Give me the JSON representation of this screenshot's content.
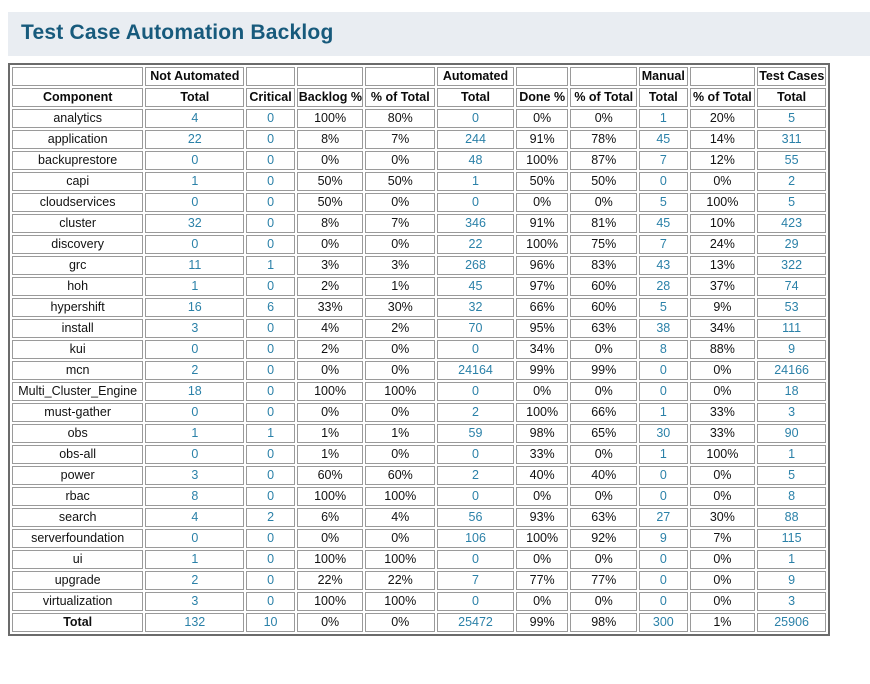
{
  "header": {
    "title": "Test Case Automation Backlog"
  },
  "colors": {
    "title_color": "#175a7c",
    "title_bar_bg": "#e9edf2",
    "accent_number": "#2b81a8",
    "cell_border": "#9a9a9a",
    "table_border": "#6b6b6b"
  },
  "table": {
    "group_headers": [
      "",
      "Not Automated",
      "",
      "",
      "",
      "Automated",
      "",
      "",
      "Manual",
      "",
      "Test Cases"
    ],
    "column_headers": [
      "Component",
      "Total",
      "Critical",
      "Backlog %",
      "% of Total",
      "Total",
      "Done %",
      "% of Total",
      "Total",
      "% of Total",
      "Total"
    ],
    "blue_value_indices": [
      0,
      1,
      4,
      7,
      9
    ],
    "rows": [
      {
        "component": "analytics",
        "values": [
          "4",
          "0",
          "100%",
          "80%",
          "0",
          "0%",
          "0%",
          "1",
          "20%",
          "5"
        ]
      },
      {
        "component": "application",
        "values": [
          "22",
          "0",
          "8%",
          "7%",
          "244",
          "91%",
          "78%",
          "45",
          "14%",
          "311"
        ]
      },
      {
        "component": "backuprestore",
        "values": [
          "0",
          "0",
          "0%",
          "0%",
          "48",
          "100%",
          "87%",
          "7",
          "12%",
          "55"
        ]
      },
      {
        "component": "capi",
        "values": [
          "1",
          "0",
          "50%",
          "50%",
          "1",
          "50%",
          "50%",
          "0",
          "0%",
          "2"
        ]
      },
      {
        "component": "cloudservices",
        "values": [
          "0",
          "0",
          "50%",
          "0%",
          "0",
          "0%",
          "0%",
          "5",
          "100%",
          "5"
        ]
      },
      {
        "component": "cluster",
        "values": [
          "32",
          "0",
          "8%",
          "7%",
          "346",
          "91%",
          "81%",
          "45",
          "10%",
          "423"
        ]
      },
      {
        "component": "discovery",
        "values": [
          "0",
          "0",
          "0%",
          "0%",
          "22",
          "100%",
          "75%",
          "7",
          "24%",
          "29"
        ]
      },
      {
        "component": "grc",
        "values": [
          "11",
          "1",
          "3%",
          "3%",
          "268",
          "96%",
          "83%",
          "43",
          "13%",
          "322"
        ]
      },
      {
        "component": "hoh",
        "values": [
          "1",
          "0",
          "2%",
          "1%",
          "45",
          "97%",
          "60%",
          "28",
          "37%",
          "74"
        ]
      },
      {
        "component": "hypershift",
        "values": [
          "16",
          "6",
          "33%",
          "30%",
          "32",
          "66%",
          "60%",
          "5",
          "9%",
          "53"
        ]
      },
      {
        "component": "install",
        "values": [
          "3",
          "0",
          "4%",
          "2%",
          "70",
          "95%",
          "63%",
          "38",
          "34%",
          "111"
        ]
      },
      {
        "component": "kui",
        "values": [
          "0",
          "0",
          "2%",
          "0%",
          "0",
          "34%",
          "0%",
          "8",
          "88%",
          "9"
        ]
      },
      {
        "component": "mcn",
        "values": [
          "2",
          "0",
          "0%",
          "0%",
          "24164",
          "99%",
          "99%",
          "0",
          "0%",
          "24166"
        ]
      },
      {
        "component": "Multi_Cluster_Engine",
        "values": [
          "18",
          "0",
          "100%",
          "100%",
          "0",
          "0%",
          "0%",
          "0",
          "0%",
          "18"
        ]
      },
      {
        "component": "must-gather",
        "values": [
          "0",
          "0",
          "0%",
          "0%",
          "2",
          "100%",
          "66%",
          "1",
          "33%",
          "3"
        ]
      },
      {
        "component": "obs",
        "values": [
          "1",
          "1",
          "1%",
          "1%",
          "59",
          "98%",
          "65%",
          "30",
          "33%",
          "90"
        ]
      },
      {
        "component": "obs-all",
        "values": [
          "0",
          "0",
          "1%",
          "0%",
          "0",
          "33%",
          "0%",
          "1",
          "100%",
          "1"
        ]
      },
      {
        "component": "power",
        "values": [
          "3",
          "0",
          "60%",
          "60%",
          "2",
          "40%",
          "40%",
          "0",
          "0%",
          "5"
        ]
      },
      {
        "component": "rbac",
        "values": [
          "8",
          "0",
          "100%",
          "100%",
          "0",
          "0%",
          "0%",
          "0",
          "0%",
          "8"
        ]
      },
      {
        "component": "search",
        "values": [
          "4",
          "2",
          "6%",
          "4%",
          "56",
          "93%",
          "63%",
          "27",
          "30%",
          "88"
        ]
      },
      {
        "component": "serverfoundation",
        "values": [
          "0",
          "0",
          "0%",
          "0%",
          "106",
          "100%",
          "92%",
          "9",
          "7%",
          "115"
        ]
      },
      {
        "component": "ui",
        "values": [
          "1",
          "0",
          "100%",
          "100%",
          "0",
          "0%",
          "0%",
          "0",
          "0%",
          "1"
        ]
      },
      {
        "component": "upgrade",
        "values": [
          "2",
          "0",
          "22%",
          "22%",
          "7",
          "77%",
          "77%",
          "0",
          "0%",
          "9"
        ]
      },
      {
        "component": "virtualization",
        "values": [
          "3",
          "0",
          "100%",
          "100%",
          "0",
          "0%",
          "0%",
          "0",
          "0%",
          "3"
        ]
      },
      {
        "component": "Total",
        "is_total": true,
        "values": [
          "132",
          "10",
          "0%",
          "0%",
          "25472",
          "99%",
          "98%",
          "300",
          "1%",
          "25906"
        ]
      }
    ]
  }
}
